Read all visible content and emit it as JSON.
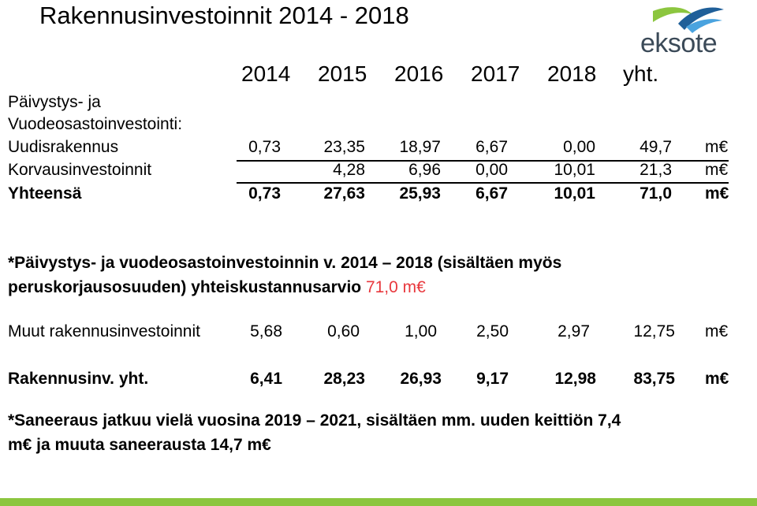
{
  "title": "Rakennusinvestoinnit 2014 - 2018",
  "logo": {
    "text": "eksote",
    "icon": "eksote-leaf-logo"
  },
  "years": [
    "2014",
    "2015",
    "2016",
    "2017",
    "2018",
    "yht."
  ],
  "section_label_1": "Päivystys- ja",
  "section_label_2": "Vuodeosastoinvestointi:",
  "rows": [
    {
      "label": "Uudisrakennus",
      "values": [
        "0,73",
        "23,35",
        "18,97",
        "6,67",
        "0,00",
        "49,7"
      ],
      "unit": "m€"
    },
    {
      "label": "Korvausinvestoinnit",
      "values": [
        "",
        "4,28",
        "6,96",
        "0,00",
        "10,01",
        "21,3"
      ],
      "unit": "m€"
    },
    {
      "label": "Yhteensä",
      "values": [
        "0,73",
        "27,63",
        "25,93",
        "6,67",
        "10,01",
        "71,0"
      ],
      "unit": "m€"
    }
  ],
  "note1_line1": "*Päivystys- ja vuodeosastoinvestoinnin v. 2014 – 2018 (sisältäen myös",
  "note1_line2": "peruskorjausosuuden) yhteiskustannusarvio ",
  "note1_highlight": "71,0 m€",
  "other": {
    "label": "Muut rakennusinvestoinnit",
    "values": [
      "5,68",
      "0,60",
      "1,00",
      "2,50",
      "2,97",
      "12,75"
    ],
    "unit": "m€"
  },
  "total": {
    "label": "Rakennusinv. yht.",
    "values": [
      "6,41",
      "28,23",
      "26,93",
      "9,17",
      "12,98",
      "83,75"
    ],
    "unit": "m€"
  },
  "note2_line1": "*Saneeraus jatkuu vielä vuosina 2019 – 2021,  sisältäen mm. uuden keittiön 7,4",
  "note2_line2": "m€ ja muuta saneerausta 14,7 m€",
  "colors": {
    "accent_red": "#e8383d",
    "bar_green": "#8cc63f",
    "logo_blue": "#1f5f99"
  }
}
